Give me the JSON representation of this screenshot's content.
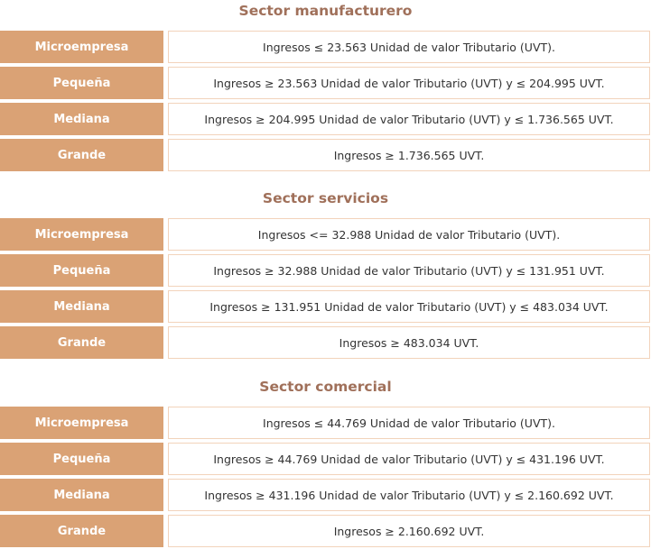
{
  "sections": [
    {
      "title": "Sector manufacturero",
      "rows": [
        {
          "label": "Microempresa",
          "desc": "Ingresos ≤ 23.563 Unidad de valor Tributario (UVT)."
        },
        {
          "label": "Pequeña",
          "desc": "Ingresos ≥ 23.563 Unidad de valor Tributario (UVT) y ≤ 204.995 UVT."
        },
        {
          "label": "Mediana",
          "desc": "Ingresos ≥ 204.995 Unidad de valor Tributario (UVT) y ≤ 1.736.565 UVT."
        },
        {
          "label": "Grande",
          "desc": "Ingresos ≥ 1.736.565 UVT."
        }
      ]
    },
    {
      "title": "Sector servicios",
      "rows": [
        {
          "label": "Microempresa",
          "desc": "Ingresos <= 32.988 Unidad de valor Tributario (UVT)."
        },
        {
          "label": "Pequeña",
          "desc": "Ingresos ≥ 32.988 Unidad de valor Tributario (UVT) y ≤ 131.951 UVT."
        },
        {
          "label": "Mediana",
          "desc": "Ingresos ≥ 131.951 Unidad de valor Tributario (UVT) y ≤ 483.034 UVT."
        },
        {
          "label": "Grande",
          "desc": "Ingresos ≥ 483.034 UVT."
        }
      ]
    },
    {
      "title": "Sector comercial",
      "rows": [
        {
          "label": "Microempresa",
          "desc": "Ingresos ≤ 44.769 Unidad de valor Tributario (UVT)."
        },
        {
          "label": "Pequeña",
          "desc": "Ingresos ≥ 44.769 Unidad de valor Tributario (UVT) y ≤ 431.196 UVT."
        },
        {
          "label": "Mediana",
          "desc": "Ingresos ≥ 431.196 Unidad de valor Tributario (UVT) y ≤ 2.160.692 UVT."
        },
        {
          "label": "Grande",
          "desc": "Ingresos ≥ 2.160.692 UVT."
        }
      ]
    }
  ],
  "colors": {
    "title": "#a0705a",
    "label_bg": "#daa275",
    "desc_border": "#f2d3bb"
  }
}
